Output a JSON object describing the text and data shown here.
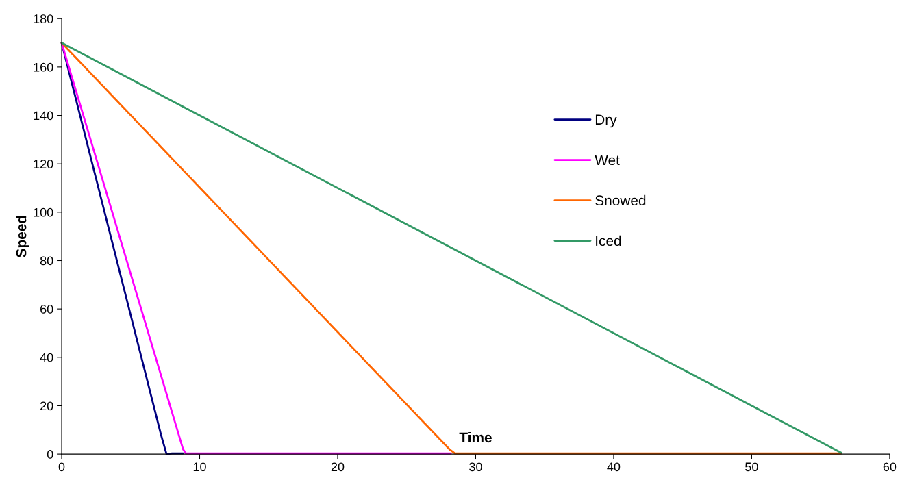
{
  "chart_data": {
    "type": "line",
    "xlabel": "Time",
    "ylabel": "Speed",
    "xlim": [
      0,
      60
    ],
    "ylim": [
      0,
      180
    ],
    "xticks": [
      0,
      10,
      20,
      30,
      40,
      50,
      60
    ],
    "yticks": [
      0,
      20,
      40,
      60,
      80,
      100,
      120,
      140,
      160,
      180
    ],
    "grid": false,
    "legend": "top right",
    "marker": "none",
    "line_style": "solid",
    "series": [
      {
        "name": "Dry",
        "color": "#000080",
        "x": [
          0,
          7.2,
          7.6,
          8.0,
          8.8
        ],
        "values": [
          170,
          8,
          0,
          0.3,
          0.3
        ]
      },
      {
        "name": "Wet",
        "color": "#ff00ff",
        "x": [
          0,
          8.8,
          9.0,
          28.2
        ],
        "values": [
          170,
          2,
          0.3,
          0.3
        ]
      },
      {
        "name": "Snowed",
        "color": "#ff6600",
        "x": [
          0,
          28.1,
          28.5,
          56.5
        ],
        "values": [
          170,
          2,
          0.3,
          0.3
        ]
      },
      {
        "name": "Iced",
        "color": "#339966",
        "x": [
          0,
          56.5
        ],
        "values": [
          170,
          0.5
        ]
      }
    ]
  }
}
